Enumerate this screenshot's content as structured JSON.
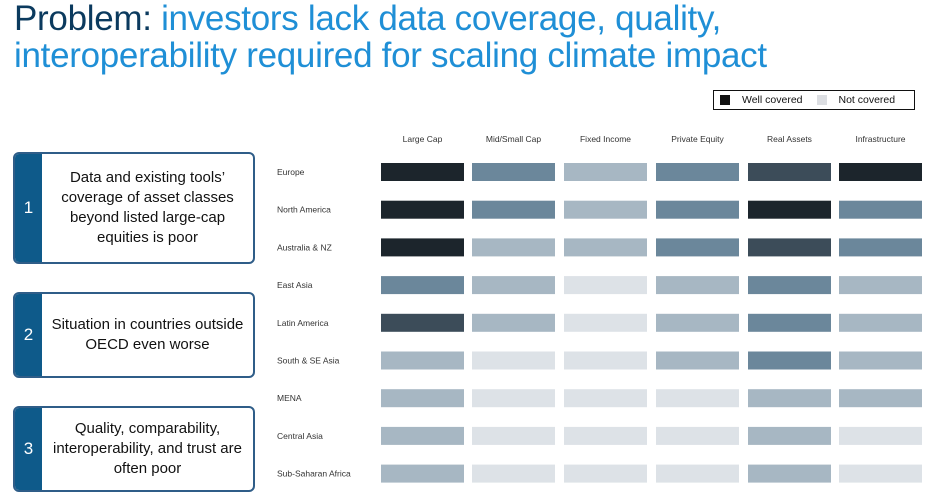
{
  "title": {
    "lead": "Problem: ",
    "rest": "investors lack data coverage, quality, interoperability required for scaling climate impact"
  },
  "legend": {
    "well_covered": "Well covered",
    "not_covered": "Not covered"
  },
  "callouts": [
    {
      "number": "1",
      "text": "Data and existing tools’ coverage of asset classes beyond listed large-cap equities is poor"
    },
    {
      "number": "2",
      "text": "Situation in countries outside OECD even worse"
    },
    {
      "number": "3",
      "text": "Quality, comparability, interoperability, and trust are often poor"
    }
  ],
  "chart_data": {
    "type": "heatmap",
    "columns": [
      "Large Cap",
      "Mid/Small Cap",
      "Fixed Income",
      "Private Equity",
      "Real Assets",
      "Infrastructure"
    ],
    "rows": [
      "Europe",
      "North America",
      "Australia & NZ",
      "East Asia",
      "Latin America",
      "South & SE Asia",
      "MENA",
      "Central Asia",
      "Sub-Saharan Africa"
    ],
    "scale": "coverage level 5 = well covered, 1 = not covered",
    "values": [
      [
        5,
        3,
        2,
        3,
        4,
        5
      ],
      [
        5,
        3,
        2,
        3,
        5,
        3
      ],
      [
        5,
        2,
        2,
        3,
        4,
        3
      ],
      [
        3,
        2,
        1,
        2,
        3,
        2
      ],
      [
        4,
        2,
        1,
        2,
        3,
        2
      ],
      [
        2,
        1,
        1,
        2,
        3,
        2
      ],
      [
        2,
        1,
        1,
        1,
        2,
        2
      ],
      [
        2,
        1,
        1,
        1,
        2,
        1
      ],
      [
        2,
        1,
        1,
        1,
        2,
        1
      ]
    ],
    "level_colors": {
      "1": "#dde2e7",
      "2": "#a7b7c3",
      "3": "#6b879b",
      "4": "#3c4c59",
      "5": "#1c252c"
    },
    "legend_placement": "top-right"
  }
}
